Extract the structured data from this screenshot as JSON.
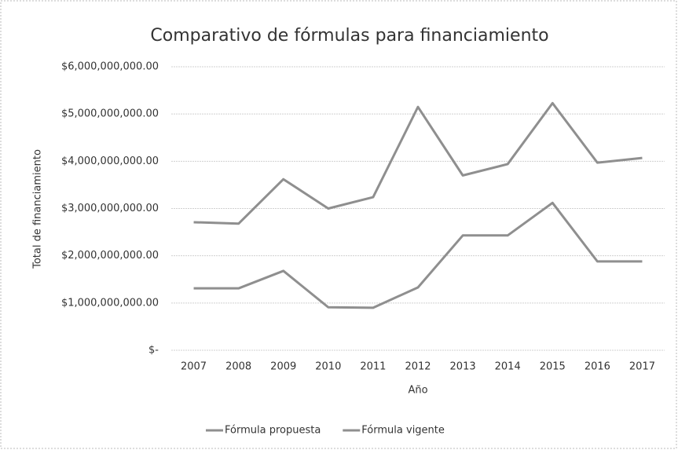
{
  "chart_data": {
    "type": "line",
    "title": "Comparativo de fórmulas para financiamiento",
    "xlabel": "Año",
    "ylabel": "Total de financiamiento",
    "categories": [
      "2007",
      "2008",
      "2009",
      "2010",
      "2011",
      "2012",
      "2013",
      "2014",
      "2015",
      "2016",
      "2017"
    ],
    "series": [
      {
        "name": "Fórmula propuesta",
        "color": "#8f8f8f",
        "values": [
          2710000000,
          2680000000,
          3620000000,
          3000000000,
          3240000000,
          5150000000,
          3700000000,
          3940000000,
          5230000000,
          3970000000,
          4070000000
        ]
      },
      {
        "name": "Fórmula vigente",
        "color": "#8f8f8f",
        "values": [
          1310000000,
          1310000000,
          1680000000,
          910000000,
          900000000,
          1330000000,
          2430000000,
          2430000000,
          3120000000,
          1880000000,
          1880000000
        ]
      }
    ],
    "ylim": [
      0,
      6000000000
    ],
    "yticks": [
      {
        "value": 0,
        "label": "$-"
      },
      {
        "value": 1000000000,
        "label": "$1,000,000,000.00"
      },
      {
        "value": 2000000000,
        "label": "$2,000,000,000.00"
      },
      {
        "value": 3000000000,
        "label": "$3,000,000,000.00"
      },
      {
        "value": 4000000000,
        "label": "$4,000,000,000.00"
      },
      {
        "value": 5000000000,
        "label": "$5,000,000,000.00"
      },
      {
        "value": 6000000000,
        "label": "$6,000,000,000.00"
      }
    ],
    "grid": true,
    "legend": "bottom"
  }
}
